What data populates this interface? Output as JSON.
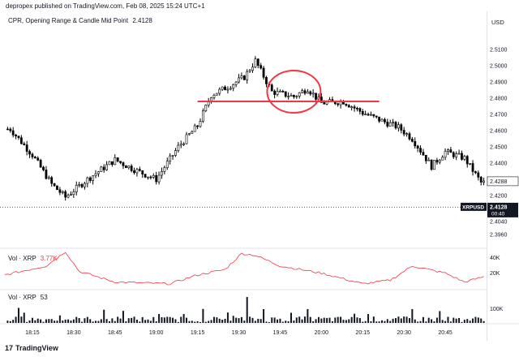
{
  "header": {
    "published_line": "depropex published on TradingView.com, Feb 08, 2025 15:24 UTC+1"
  },
  "indicator": {
    "name": "CPR, Opening Range & Candle Mid Point",
    "value": "2.4128"
  },
  "footer": {
    "logo_glyph": "17",
    "brand": "TradingView"
  },
  "price_scale": {
    "currency": "USD",
    "last_price_label": "2.4288",
    "symbol_tag": "XRPUSD",
    "symbol_value": "2.4128",
    "countdown": "00:40"
  },
  "volume_ma_pane": {
    "title": "Vol · XRP",
    "value": "3.77K",
    "ticks": [
      "40K",
      "20K"
    ],
    "line_color": "#f23645"
  },
  "volume_pane": {
    "title": "Vol · XRP",
    "value": "53",
    "ticks": [
      "100K"
    ],
    "bar_color": "#131722"
  },
  "annotations": {
    "horizontal_line_price": 2.478,
    "line_color": "#f23645",
    "circle_center_time": "19:50",
    "circle_center_price": 2.484
  },
  "chart_data": {
    "type": "candlestick",
    "symbol": "XRPUSD",
    "xlabel": "",
    "ylabel": "",
    "x_ticks": [
      "18:15",
      "18:30",
      "18:45",
      "19:00",
      "19:15",
      "19:30",
      "19:45",
      "20:00",
      "20:15",
      "20:30",
      "20:45"
    ],
    "y_ticks": [
      "2.5100",
      "2.5000",
      "2.4900",
      "2.4800",
      "2.4700",
      "2.4600",
      "2.4500",
      "2.4400",
      "2.4200",
      "2.4040",
      "2.3960"
    ],
    "ylim": [
      2.3925,
      2.5165
    ],
    "grid": false,
    "reference_level": 2.4128,
    "series": [
      {
        "name": "Price",
        "anchors_time": [
          "18:07",
          "18:15",
          "18:22",
          "18:27",
          "18:35",
          "18:45",
          "18:52",
          "19:00",
          "19:08",
          "19:15",
          "19:20",
          "19:26",
          "19:32",
          "19:36",
          "19:42",
          "19:50",
          "19:55",
          "20:00",
          "20:08",
          "20:15",
          "20:22",
          "20:28",
          "20:33",
          "20:40",
          "20:45",
          "20:52",
          "20:58"
        ],
        "anchors_close": [
          2.461,
          2.445,
          2.427,
          2.419,
          2.43,
          2.442,
          2.436,
          2.43,
          2.45,
          2.463,
          2.482,
          2.487,
          2.493,
          2.503,
          2.484,
          2.481,
          2.486,
          2.477,
          2.478,
          2.471,
          2.466,
          2.462,
          2.455,
          2.438,
          2.447,
          2.443,
          2.428
        ]
      }
    ]
  }
}
